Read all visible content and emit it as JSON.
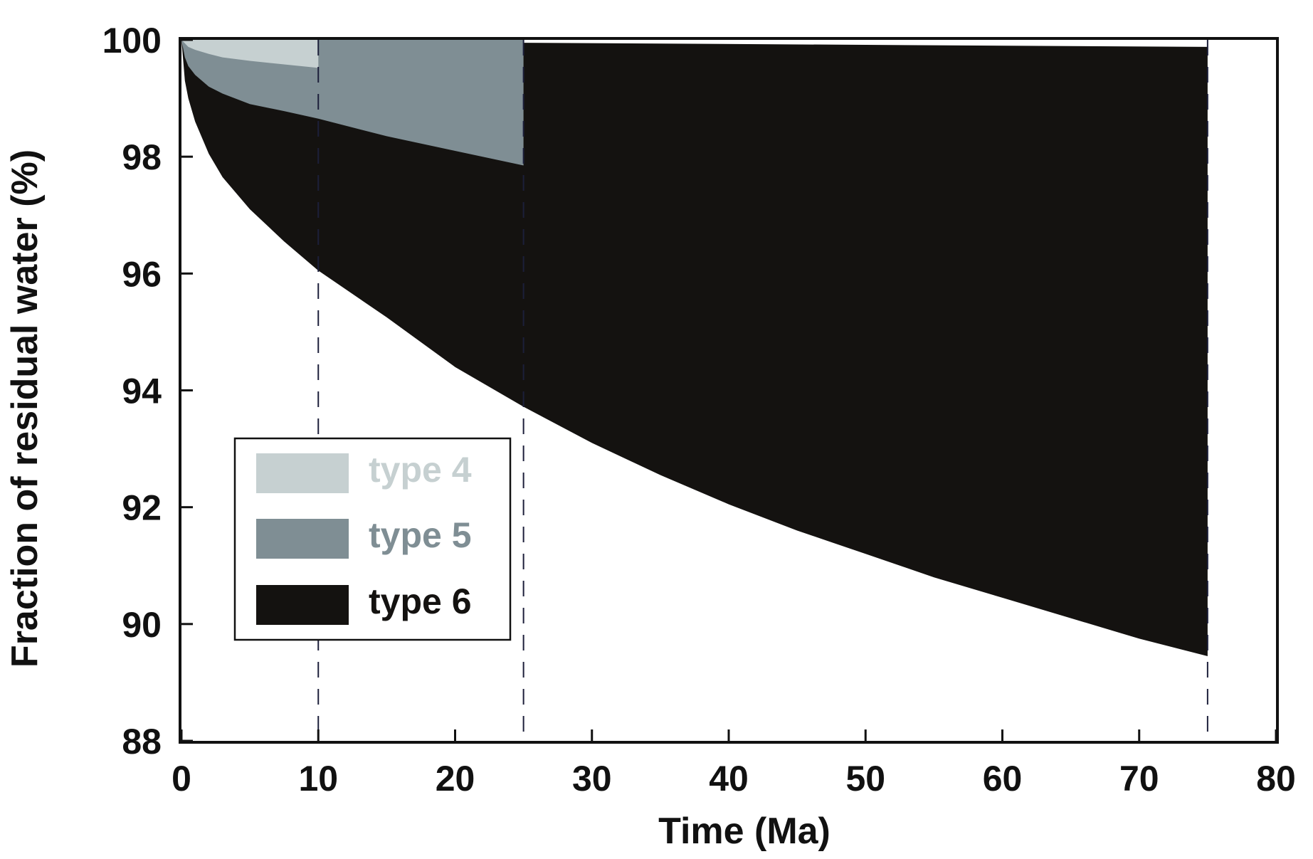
{
  "chart_data": {
    "type": "area",
    "title": "",
    "xlabel": "Time (Ma)",
    "ylabel": "Fraction of residual water (%)",
    "xlim": [
      0,
      80
    ],
    "ylim": [
      88,
      100
    ],
    "xticks": [
      0,
      10,
      20,
      30,
      40,
      50,
      60,
      70,
      80
    ],
    "yticks": [
      88,
      90,
      92,
      94,
      96,
      98,
      100
    ],
    "vlines": [
      10,
      25,
      75
    ],
    "legend": {
      "position": "lower-left"
    },
    "series": [
      {
        "name": "type 6",
        "color": "#141210",
        "x_end": 75,
        "upper": [
          [
            0,
            100
          ],
          [
            25,
            99.95
          ],
          [
            75,
            99.88
          ]
        ],
        "lower": [
          [
            0,
            100
          ],
          [
            0.25,
            99.3
          ],
          [
            0.5,
            99.0
          ],
          [
            1,
            98.6
          ],
          [
            2,
            98.05
          ],
          [
            3,
            97.65
          ],
          [
            5,
            97.1
          ],
          [
            7.5,
            96.55
          ],
          [
            10,
            96.05
          ],
          [
            15,
            95.25
          ],
          [
            20,
            94.4
          ],
          [
            25,
            93.72
          ],
          [
            30,
            93.1
          ],
          [
            35,
            92.55
          ],
          [
            40,
            92.05
          ],
          [
            45,
            91.6
          ],
          [
            50,
            91.2
          ],
          [
            55,
            90.8
          ],
          [
            60,
            90.45
          ],
          [
            65,
            90.1
          ],
          [
            70,
            89.75
          ],
          [
            75,
            89.45
          ]
        ]
      },
      {
        "name": "type 5",
        "color": "#7f8e94",
        "x_end": 25,
        "upper": [
          [
            0,
            100
          ],
          [
            25,
            100
          ]
        ],
        "lower": [
          [
            0,
            100
          ],
          [
            0.25,
            99.7
          ],
          [
            0.5,
            99.55
          ],
          [
            1,
            99.4
          ],
          [
            2,
            99.2
          ],
          [
            3,
            99.08
          ],
          [
            5,
            98.9
          ],
          [
            7.5,
            98.78
          ],
          [
            10,
            98.65
          ],
          [
            15,
            98.35
          ],
          [
            20,
            98.1
          ],
          [
            25,
            97.85
          ]
        ]
      },
      {
        "name": "type 4",
        "color": "#c6d0d1",
        "x_end": 10,
        "upper": [
          [
            0,
            100
          ],
          [
            10,
            100
          ]
        ],
        "lower": [
          [
            0,
            100
          ],
          [
            0.5,
            99.88
          ],
          [
            1,
            99.83
          ],
          [
            2,
            99.76
          ],
          [
            3,
            99.7
          ],
          [
            5,
            99.64
          ],
          [
            7.5,
            99.58
          ],
          [
            10,
            99.52
          ]
        ]
      }
    ],
    "legend_entries": [
      {
        "label": "type 4",
        "color": "#c6d0d1"
      },
      {
        "label": "type 5",
        "color": "#7f8e94"
      },
      {
        "label": "type 6",
        "color": "#141210"
      }
    ]
  }
}
